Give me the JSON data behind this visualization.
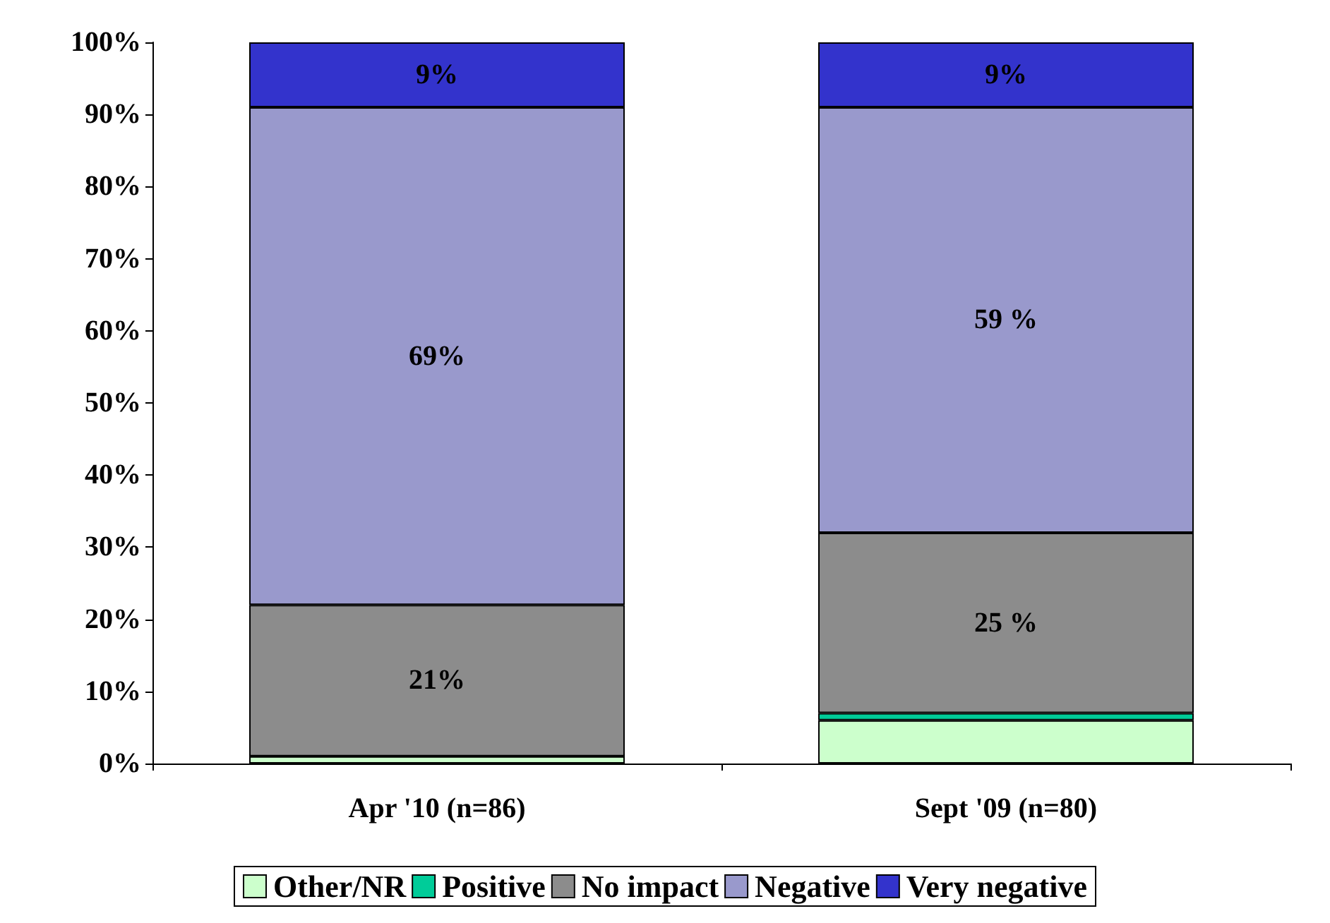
{
  "chart_data": {
    "type": "bar",
    "stacked": true,
    "categories": [
      "Apr '10 (n=86)",
      "Sept '09 (n=80)"
    ],
    "series": [
      {
        "name": "Other/NR",
        "color": "#ccffcc",
        "values": [
          1,
          6
        ],
        "value_labels": [
          null,
          null
        ]
      },
      {
        "name": "Positive",
        "color": "#00cc99",
        "values": [
          0,
          1
        ],
        "value_labels": [
          null,
          null
        ]
      },
      {
        "name": "No impact",
        "color": "#8c8c8c",
        "values": [
          21,
          25
        ],
        "value_labels": [
          "21%",
          "25 %"
        ]
      },
      {
        "name": "Negative",
        "color": "#9999cc",
        "values": [
          69,
          59
        ],
        "value_labels": [
          "69%",
          "59 %"
        ]
      },
      {
        "name": "Very negative",
        "color": "#3333cc",
        "values": [
          9,
          9
        ],
        "value_labels": [
          "9%",
          "9%"
        ]
      }
    ],
    "ylim": [
      0,
      100
    ],
    "yticks": [
      {
        "value": 0,
        "label": "0%"
      },
      {
        "value": 10,
        "label": "10%"
      },
      {
        "value": 20,
        "label": "20%"
      },
      {
        "value": 30,
        "label": "30%"
      },
      {
        "value": 40,
        "label": "40%"
      },
      {
        "value": 50,
        "label": "50%"
      },
      {
        "value": 60,
        "label": "60%"
      },
      {
        "value": 70,
        "label": "70%"
      },
      {
        "value": 80,
        "label": "80%"
      },
      {
        "value": 90,
        "label": "90%"
      },
      {
        "value": 100,
        "label": "100%"
      }
    ],
    "grid": false,
    "legend": "bottom"
  }
}
